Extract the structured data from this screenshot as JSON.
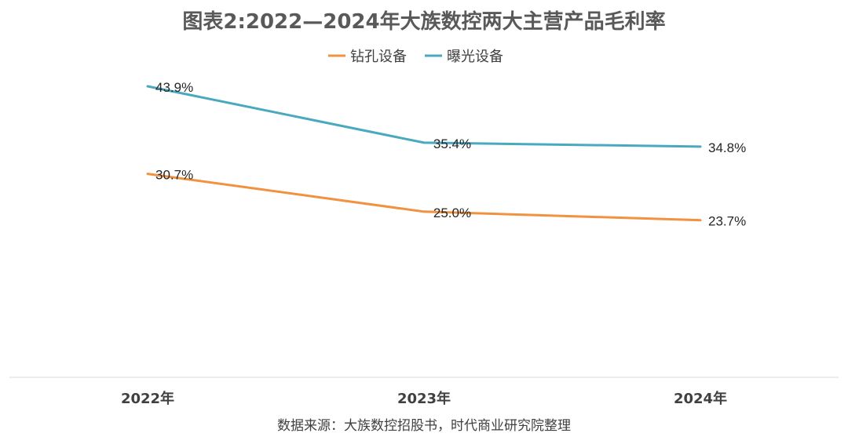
{
  "chart_data": {
    "type": "line",
    "title": "图表2:2022—2024年大族数控两大主营产品毛利率",
    "categories": [
      "2022年",
      "2023年",
      "2024年"
    ],
    "series": [
      {
        "name": "钻孔设备",
        "values": [
          30.7,
          25.0,
          23.7
        ],
        "labels": [
          "30.7%",
          "25.0%",
          "23.7%"
        ],
        "color": "#F0923F"
      },
      {
        "name": "曝光设备",
        "values": [
          43.9,
          35.4,
          34.8
        ],
        "labels": [
          "43.9%",
          "35.4%",
          "34.8%"
        ],
        "color": "#4AA8BF"
      }
    ],
    "ylim": [
      0,
      50
    ],
    "legend_position": "top",
    "grid": false,
    "xlabel": "",
    "ylabel": ""
  },
  "source": "数据来源：大族数控招股书，时代商业研究院整理",
  "colors": {
    "axis": "#D9D9D9"
  }
}
